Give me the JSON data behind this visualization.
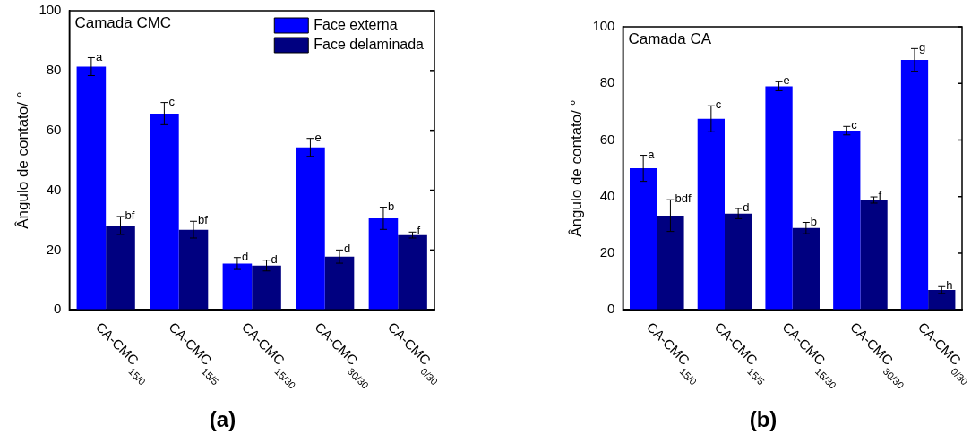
{
  "chart_data": [
    {
      "type": "bar",
      "title": "(a)",
      "ylabel": "Ângulo de contato/ °",
      "categories": [
        "CA-CMC$_{15/0}$",
        "CA-CMC$_{15/5}$",
        "CA-CMC$_{15/30}$",
        "CA-CMC$_{30/30}$",
        "CA-CMC$_{0/30}$"
      ],
      "series": [
        {
          "name": "Face externa",
          "color": "#0000ff",
          "values": [
            81.3,
            65.6,
            15.5,
            54.3,
            30.6
          ],
          "errors": [
            3,
            3.7,
            2,
            3,
            3.7
          ],
          "value_labels": [
            "a",
            "c",
            "d",
            "e",
            "b"
          ]
        },
        {
          "name": "Face delaminada",
          "color": "#000080",
          "values": [
            28.2,
            26.8,
            14.8,
            17.8,
            25.0
          ],
          "errors": [
            3,
            2.8,
            1.8,
            2.2,
            1
          ],
          "value_labels": [
            "bf",
            "bf",
            "d",
            "d",
            "f"
          ]
        }
      ],
      "ylim": [
        0,
        100
      ],
      "yticks": [
        0,
        20,
        40,
        60,
        80,
        100
      ],
      "legend": "top right",
      "annotations": [
        "Camada CMC"
      ]
    },
    {
      "type": "bar",
      "title": "(b)",
      "ylabel": "Ângulo de contato/ °",
      "categories": [
        "CA-CMC$_{15/0}$",
        "CA-CMC$_{15/5}$",
        "CA-CMC$_{15/30}$",
        "CA-CMC$_{30/30}$",
        "CA-CMC$_{0/30}$"
      ],
      "series": [
        {
          "color": "#0000ff",
          "values": [
            50,
            67.5,
            79,
            63.3,
            88.3
          ],
          "errors": [
            4.6,
            4.6,
            1.6,
            1.5,
            4
          ],
          "value_labels": [
            "a",
            "c",
            "e",
            "c",
            "g"
          ]
        },
        {
          "color": "#000080",
          "values": [
            33.3,
            34,
            28.9,
            38.8,
            7
          ],
          "errors": [
            5.6,
            1.8,
            2,
            1.1,
            1.2
          ],
          "value_labels": [
            "bdf",
            "d",
            "b",
            "f",
            "h"
          ]
        }
      ],
      "ylim": [
        0,
        100
      ],
      "yticks": [
        0,
        20,
        40,
        60,
        80,
        100
      ],
      "annotations": [
        "Camada CA"
      ]
    }
  ]
}
